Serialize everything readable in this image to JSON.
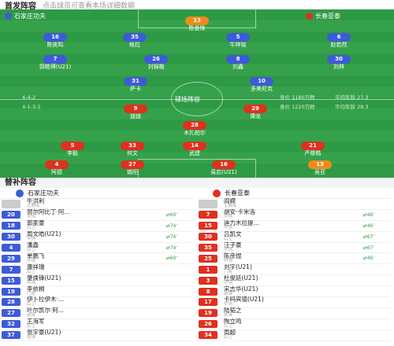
{
  "header": {
    "title": "首发阵容",
    "subtitle": "点击球员可查看本场详细数据"
  },
  "home": {
    "name": "石家庄功夫",
    "formation": "4-4-2",
    "coach": "牛洪利",
    "coach_role": "主教练",
    "color": "#3d5bd8"
  },
  "away": {
    "name": "长春亚泰",
    "formation": "4-1-3-2",
    "coach": "阎嵘",
    "coach_role": "主教练",
    "color": "#e0301e"
  },
  "pitch": {
    "home_label": "石家庄功夫",
    "away_label": "长春亚泰",
    "center_text": "球场阵容",
    "home_form": "4-4-2",
    "away_form": "4-1-3-2",
    "home_val": "身价 1180万欧",
    "away_val": "身价 1220万欧",
    "home_avg": "平均年龄 27.3",
    "away_avg": "平均年龄 28.3"
  },
  "home_players": [
    {
      "num": "16",
      "name": "陈奕鸣",
      "cls": "L"
    },
    {
      "num": "35",
      "name": "格拉",
      "cls": "M"
    },
    {
      "num": "5",
      "name": "牛梓铭",
      "cls": "M"
    },
    {
      "num": "6",
      "name": "赵若然",
      "cls": "R"
    },
    {
      "num": "7",
      "name": "郭皓博(U21)",
      "cls": "L"
    },
    {
      "num": "26",
      "name": "刘锦楷",
      "cls": "M"
    },
    {
      "num": "8",
      "name": "刘鑫",
      "cls": "M"
    },
    {
      "num": "30",
      "name": "刘林",
      "cls": "R"
    },
    {
      "num": "31",
      "name": "萨卡",
      "cls": "F"
    },
    {
      "num": "10",
      "name": "多美尼克",
      "cls": "F"
    }
  ],
  "away_players": [
    {
      "num": "9",
      "name": "迪迪",
      "cls": "F"
    },
    {
      "num": "29",
      "name": "谭龙",
      "cls": "F"
    },
    {
      "num": "28",
      "name": "木扎帕尔",
      "cls": "M"
    },
    {
      "num": "5",
      "name": "李毅",
      "cls": "M"
    },
    {
      "num": "33",
      "name": "何文",
      "cls": "M"
    },
    {
      "num": "14",
      "name": "武建",
      "cls": "M"
    },
    {
      "num": "21",
      "name": "严鼎皓",
      "cls": "D"
    },
    {
      "num": "4",
      "name": "阿德",
      "cls": "D"
    },
    {
      "num": "27",
      "name": "姚阳",
      "cls": "D"
    },
    {
      "num": "16",
      "name": "易启(U21)",
      "cls": "D"
    },
    {
      "num": "13",
      "name": "吴亚",
      "cls": "G"
    }
  ],
  "gk_top": {
    "num": "13",
    "name": "陈金锋"
  },
  "bench": {
    "title": "替补阵容",
    "home": [
      {
        "num": "20",
        "name": "努尔阿比丁·阿...",
        "pos": "中场",
        "ex": "60'"
      },
      {
        "num": "18",
        "name": "郭家豪",
        "pos": "后卫",
        "ex": "74'"
      },
      {
        "num": "30",
        "name": "周文皓(U21)",
        "pos": "中场",
        "ex": "74'"
      },
      {
        "num": "4",
        "name": "潘鑫",
        "pos": "后卫",
        "ex": "74'"
      },
      {
        "num": "29",
        "name": "单鹏飞",
        "pos": "中场",
        "ex": "60'"
      },
      {
        "num": "7",
        "name": "康祥瑞",
        "pos": "后卫",
        "ex": ""
      },
      {
        "num": "15",
        "name": "肇焕锋(U21)",
        "pos": "中场",
        "ex": ""
      },
      {
        "num": "19",
        "name": "李依桐",
        "pos": "门将",
        "ex": ""
      },
      {
        "num": "28",
        "name": "伊卜拉伊木·...",
        "pos": "后卫",
        "ex": ""
      },
      {
        "num": "27",
        "name": "叶尔凯尔·阿...",
        "pos": "前锋",
        "ex": ""
      },
      {
        "num": "32",
        "name": "王海军",
        "pos": "后卫",
        "ex": ""
      },
      {
        "num": "37",
        "name": "张宇豪(U21)",
        "pos": "前锋",
        "ex": ""
      }
    ],
    "away": [
      {
        "num": "7",
        "name": "胡安·卡米洛",
        "pos": "中场",
        "ex": "46'"
      },
      {
        "num": "15",
        "name": "迪力木拉提...",
        "pos": "中场",
        "ex": "46'"
      },
      {
        "num": "30",
        "name": "吕凯文",
        "pos": "后卫",
        "ex": "67'"
      },
      {
        "num": "35",
        "name": "汪子豪",
        "pos": "中场",
        "ex": "67'"
      },
      {
        "num": "25",
        "name": "陈彦煜",
        "pos": "中场",
        "ex": "46'"
      },
      {
        "num": "1",
        "name": "刘宇(U21)",
        "pos": "门将",
        "ex": ""
      },
      {
        "num": "3",
        "name": "杜俊廷(U21)",
        "pos": "中场",
        "ex": ""
      },
      {
        "num": "8",
        "name": "宋志华(U21)",
        "pos": "前锋",
        "ex": ""
      },
      {
        "num": "17",
        "name": "卡吗宾德(U21)",
        "pos": "中场",
        "ex": ""
      },
      {
        "num": "19",
        "name": "陆韬之",
        "pos": "前锋",
        "ex": ""
      },
      {
        "num": "26",
        "name": "陶立鸣",
        "pos": "后卫",
        "ex": ""
      },
      {
        "num": "34",
        "name": "周超",
        "pos": "后卫",
        "ex": ""
      }
    ]
  }
}
